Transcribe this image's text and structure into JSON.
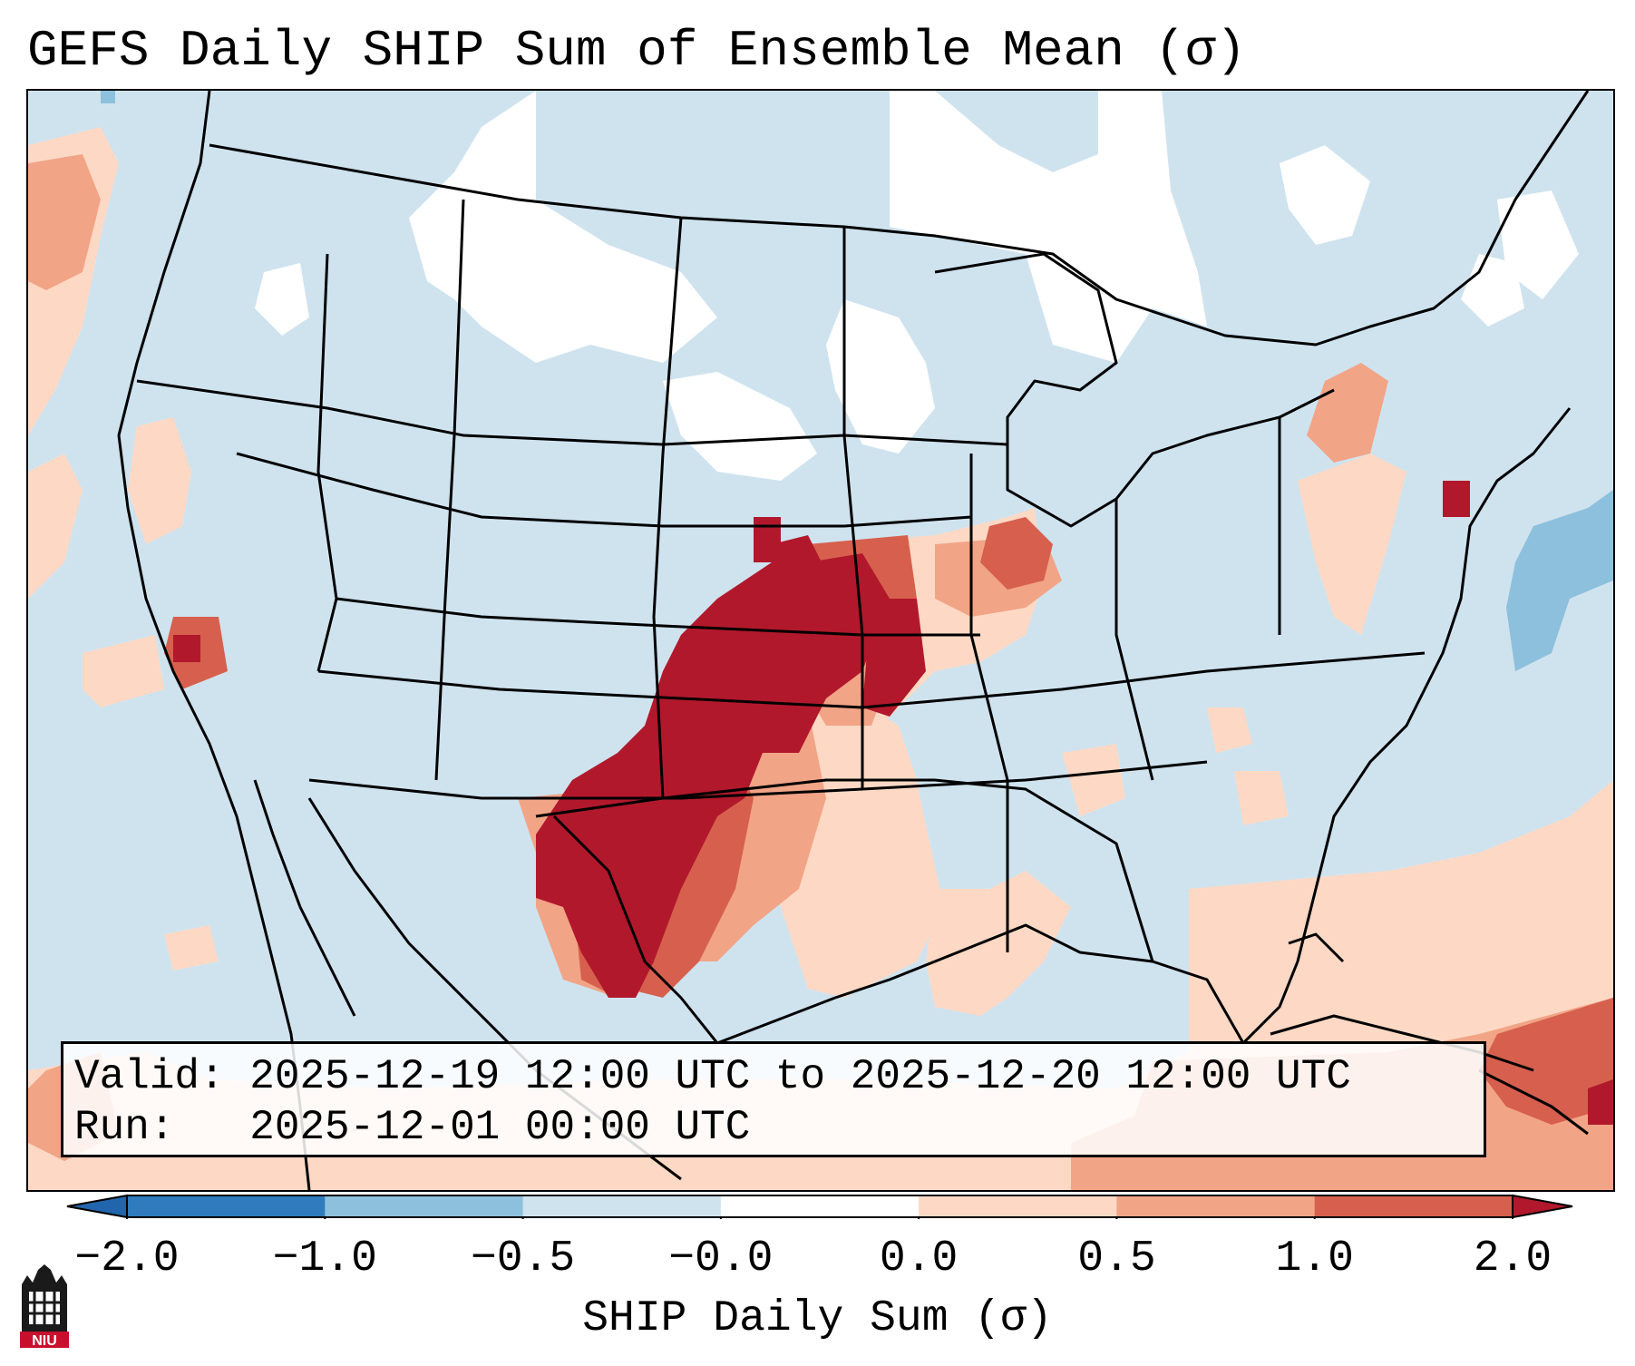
{
  "title": "GEFS Daily SHIP Sum of Ensemble Mean (σ)",
  "info": {
    "valid_line": "Valid: 2025-12-19 12:00 UTC to 2025-12-20 12:00 UTC",
    "run_line": "Run:   2025-12-01 00:00 UTC"
  },
  "colorbar": {
    "label": "SHIP Daily Sum (σ)",
    "ticks": [
      "−2.0",
      "−1.0",
      "−0.5",
      "−0.0",
      "0.0",
      "0.5",
      "1.0",
      "2.0"
    ],
    "colors": [
      "#2f7bbd",
      "#8dc0dd",
      "#cfe3ef",
      "#ffffff",
      "#fdd9c5",
      "#f2a486",
      "#d6604d",
      "#b2182b"
    ],
    "extend": "both"
  },
  "legend_colors": {
    "below_-2": "#2166ac",
    "above_2": "#b2182b",
    "land_ocean_background": "#cfe3ef"
  },
  "map": {
    "region": "Contiguous United States",
    "projection": "Lambert conformal",
    "highest_values": "southern Plains: Texas, Oklahoma, Kansas",
    "lowest_values": "western Atlantic"
  },
  "logo_text": "NIU"
}
